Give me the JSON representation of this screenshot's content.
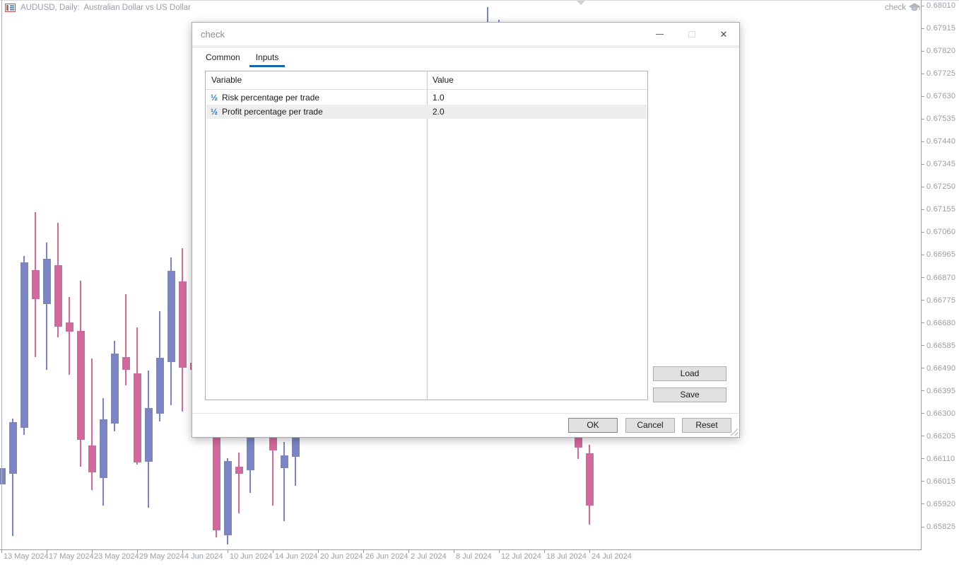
{
  "window": {
    "symbol_label": "AUDUSD, Daily:  Australian Dollar vs US Dollar",
    "expert_name": "check"
  },
  "chart_data": {
    "type": "candlestick",
    "symbol": "AUDUSD",
    "timeframe": "Daily",
    "price_axis_ticks": [
      "0.68010",
      "0.67915",
      "0.67820",
      "0.67725",
      "0.67630",
      "0.67535",
      "0.67440",
      "0.67345",
      "0.67250",
      "0.67155",
      "0.67060",
      "0.66965",
      "0.66870",
      "0.66775",
      "0.66680",
      "0.66585",
      "0.66490",
      "0.66395",
      "0.66300",
      "0.66205",
      "0.66110",
      "0.66015",
      "0.65920",
      "0.65825"
    ],
    "date_axis_ticks": [
      "13 May 2024",
      "17 May 2024",
      "23 May 2024",
      "29 May 2024",
      "4 Jun 2024",
      "10 Jun 2024",
      "14 Jun 2024",
      "20 Jun 2024",
      "26 Jun 2024",
      "2 Jul 2024",
      "8 Jul 2024",
      "12 Jul 2024",
      "18 Jul 2024",
      "24 Jul 2024"
    ],
    "colors": {
      "bullish": "#7b85c4",
      "bearish": "#d2699e"
    },
    "candles": [
      {
        "bar": 0,
        "dir": "bull",
        "o": 0.66003,
        "h": 0.66071,
        "l": 0.66003,
        "c": 0.66071
      },
      {
        "bar": 1,
        "dir": "bull",
        "o": 0.66047,
        "h": 0.66279,
        "l": 0.65786,
        "c": 0.66264
      },
      {
        "bar": 2,
        "dir": "bull",
        "o": 0.6624,
        "h": 0.6696,
        "l": 0.6621,
        "c": 0.66934
      },
      {
        "bar": 3,
        "dir": "bear",
        "o": 0.66901,
        "h": 0.67144,
        "l": 0.66537,
        "c": 0.6678
      },
      {
        "bar": 4,
        "dir": "bull",
        "o": 0.66759,
        "h": 0.67017,
        "l": 0.66483,
        "c": 0.66949
      },
      {
        "bar": 5,
        "dir": "bear",
        "o": 0.66922,
        "h": 0.671,
        "l": 0.6662,
        "c": 0.66664
      },
      {
        "bar": 6,
        "dir": "bear",
        "o": 0.66682,
        "h": 0.66789,
        "l": 0.66462,
        "c": 0.66643
      },
      {
        "bar": 7,
        "dir": "bear",
        "o": 0.66646,
        "h": 0.66857,
        "l": 0.66077,
        "c": 0.6619
      },
      {
        "bar": 8,
        "dir": "bear",
        "o": 0.66166,
        "h": 0.66531,
        "l": 0.65979,
        "c": 0.66053
      },
      {
        "bar": 9,
        "dir": "bull",
        "o": 0.6603,
        "h": 0.66365,
        "l": 0.65914,
        "c": 0.66276
      },
      {
        "bar": 10,
        "dir": "bull",
        "o": 0.66258,
        "h": 0.66605,
        "l": 0.66225,
        "c": 0.66551
      },
      {
        "bar": 11,
        "dir": "bear",
        "o": 0.66537,
        "h": 0.668,
        "l": 0.66418,
        "c": 0.66483
      },
      {
        "bar": 12,
        "dir": "bear",
        "o": 0.66468,
        "h": 0.66661,
        "l": 0.66086,
        "c": 0.66095
      },
      {
        "bar": 13,
        "dir": "bull",
        "o": 0.66098,
        "h": 0.6648,
        "l": 0.65905,
        "c": 0.66323
      },
      {
        "bar": 14,
        "dir": "bull",
        "o": 0.66299,
        "h": 0.66729,
        "l": 0.66267,
        "c": 0.66533
      },
      {
        "bar": 15,
        "dir": "bull",
        "o": 0.66516,
        "h": 0.66955,
        "l": 0.66335,
        "c": 0.66898
      },
      {
        "bar": 16,
        "dir": "bear",
        "o": 0.66854,
        "h": 0.66993,
        "l": 0.66308,
        "c": 0.66492
      },
      {
        "bar": 17,
        "dir": "bear",
        "o": 0.66513,
        "h": 0.66513,
        "l": 0.66483,
        "c": 0.66483
      },
      {
        "bar": 19,
        "dir": "bear",
        "o": 0.66255,
        "h": 0.66255,
        "l": 0.65781,
        "c": 0.6581
      },
      {
        "bar": 20,
        "dir": "bull",
        "o": 0.6579,
        "h": 0.66113,
        "l": 0.65751,
        "c": 0.66101
      },
      {
        "bar": 21,
        "dir": "bear",
        "o": 0.66077,
        "h": 0.66136,
        "l": 0.65881,
        "c": 0.66047
      },
      {
        "bar": 22,
        "dir": "bull",
        "o": 0.66062,
        "h": 0.66255,
        "l": 0.65967,
        "c": 0.66255
      },
      {
        "bar": 24,
        "dir": "bear",
        "o": 0.66255,
        "h": 0.66255,
        "l": 0.65914,
        "c": 0.66145
      },
      {
        "bar": 25,
        "dir": "bull",
        "o": 0.66071,
        "h": 0.66181,
        "l": 0.65849,
        "c": 0.66125
      },
      {
        "bar": 26,
        "dir": "bull",
        "o": 0.66119,
        "h": 0.66255,
        "l": 0.65997,
        "c": 0.66255
      },
      {
        "bar": 43,
        "dir": "bull",
        "o": 0.67441,
        "h": 0.68004,
        "l": 0.67441,
        "c": 0.67441
      },
      {
        "bar": 44,
        "dir": "bull",
        "o": 0.67743,
        "h": 0.67951,
        "l": 0.67743,
        "c": 0.67743
      },
      {
        "bar": 51,
        "dir": "bear",
        "o": 0.66255,
        "h": 0.66255,
        "l": 0.6611,
        "c": 0.66157
      },
      {
        "bar": 52,
        "dir": "bear",
        "o": 0.66133,
        "h": 0.66169,
        "l": 0.65834,
        "c": 0.65914
      }
    ]
  },
  "dialog": {
    "title": "check",
    "controls": {
      "close_glyph": "✕"
    },
    "tabs": [
      {
        "label": "Common",
        "active": false
      },
      {
        "label": "Inputs",
        "active": true
      }
    ],
    "inputs_table": {
      "columns": [
        "Variable",
        "Value"
      ],
      "type_icon_glyph": "½",
      "rows": [
        {
          "variable": "Risk percentage per trade",
          "value": "1.0",
          "selected": false
        },
        {
          "variable": "Profit percentage per trade",
          "value": "2.0",
          "selected": true
        }
      ]
    },
    "buttons": {
      "load": "Load",
      "save": "Save",
      "ok": "OK",
      "cancel": "Cancel",
      "reset": "Reset"
    }
  }
}
